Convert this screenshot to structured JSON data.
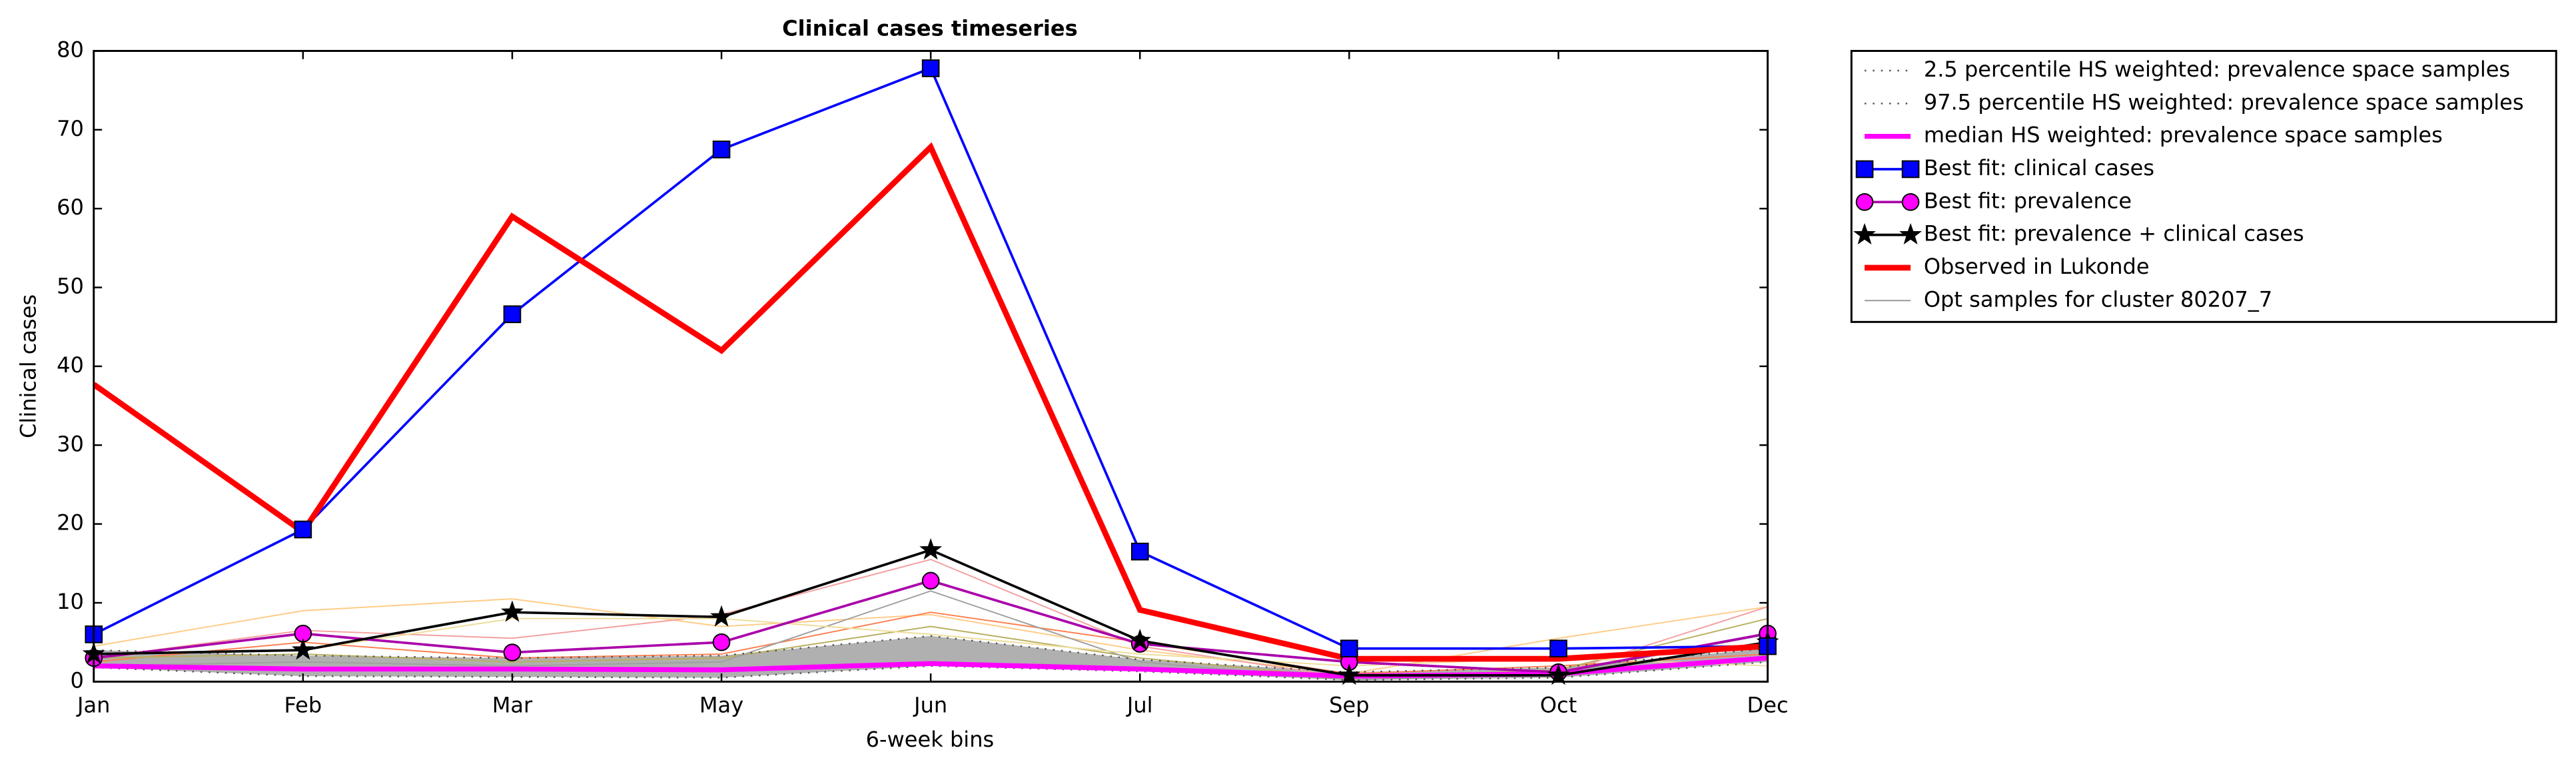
{
  "chart_data": {
    "type": "line",
    "title": "Clinical cases timeseries",
    "x_label": "6-week bins",
    "y_label": "Clinical cases",
    "categories": [
      "Jan",
      "Feb",
      "Mar",
      "May",
      "Jun",
      "Jul",
      "Sep",
      "Oct",
      "Dec"
    ],
    "ylim": [
      0,
      80
    ],
    "yticks": [
      0,
      10,
      20,
      30,
      40,
      50,
      60,
      70,
      80
    ],
    "fill_between": [
      0,
      1
    ],
    "fill_color": "#b0b0b0",
    "legend": "outside-upper-right",
    "series": [
      {
        "name": "2.5 percentile HS weighted: prevalence space samples",
        "color": "#555555",
        "style": "dotted",
        "width": 1,
        "values": [
          1.8,
          0.7,
          0.6,
          0.5,
          2,
          1.3,
          0.2,
          0.5,
          2.5
        ]
      },
      {
        "name": "97.5 percentile HS weighted: prevalence space samples",
        "color": "#555555",
        "style": "dotted",
        "width": 1,
        "values": [
          4,
          3.3,
          3,
          3.3,
          5.8,
          2.8,
          1.2,
          1.8,
          4.2
        ]
      },
      {
        "name": "median HS weighted: prevalence space samples",
        "color": "#ff00ff",
        "style": "solid",
        "width": 3,
        "values": [
          2,
          1.6,
          1.6,
          1.5,
          2.3,
          1.6,
          0.7,
          1,
          3
        ]
      },
      {
        "name": "Best fit: clinical cases",
        "color": "#0000ff",
        "style": "solid",
        "width": 1.5,
        "marker": "square",
        "values": [
          6,
          19.3,
          46.6,
          67.5,
          77.8,
          16.5,
          4.2,
          4.2,
          4.5
        ]
      },
      {
        "name": "Best fit: prevalence",
        "color": "#ff00ff",
        "line_color": "#aa00aa",
        "style": "solid",
        "width": 1.5,
        "marker": "circle",
        "values": [
          3,
          6.1,
          3.7,
          5,
          12.8,
          4.8,
          2.5,
          1.2,
          6.1
        ]
      },
      {
        "name": "Best fit: prevalence + clinical cases",
        "color": "#000000",
        "style": "solid",
        "width": 1.5,
        "marker": "star",
        "values": [
          3.5,
          4,
          8.8,
          8.2,
          16.7,
          5.2,
          0.8,
          0.8,
          5
        ]
      },
      {
        "name": "Observed in Lukonde",
        "color": "#ff0000",
        "style": "solid",
        "width": 3.5,
        "values": [
          37.7,
          19,
          59,
          42,
          67.8,
          9.1,
          2.9,
          2.9,
          4.5
        ]
      },
      {
        "name": "Opt samples for cluster 80207_7",
        "color": "#999999",
        "style": "solid",
        "width": 0.8,
        "lines": [
          [
            4.5,
            9,
            10.5,
            7,
            8.5,
            4,
            1,
            5.5,
            9.5
          ],
          [
            3,
            6.5,
            5.5,
            8.5,
            15.5,
            4.5,
            0.5,
            1,
            9.5
          ],
          [
            2.5,
            5,
            3,
            3.5,
            8.8,
            5,
            1,
            2,
            3.5
          ],
          [
            3,
            3.5,
            2.5,
            3,
            7,
            3,
            0.5,
            1.5,
            8
          ],
          [
            2,
            2.5,
            2,
            2.5,
            11.5,
            2.5,
            0.2,
            1,
            6
          ],
          [
            3.5,
            4,
            8,
            8,
            6,
            3.5,
            2,
            3,
            2
          ]
        ],
        "line_colors": [
          "#ffcc88",
          "#f4a0a0",
          "#ff7f50",
          "#b8b060",
          "#a0a0a0",
          "#eedd99"
        ]
      }
    ]
  }
}
